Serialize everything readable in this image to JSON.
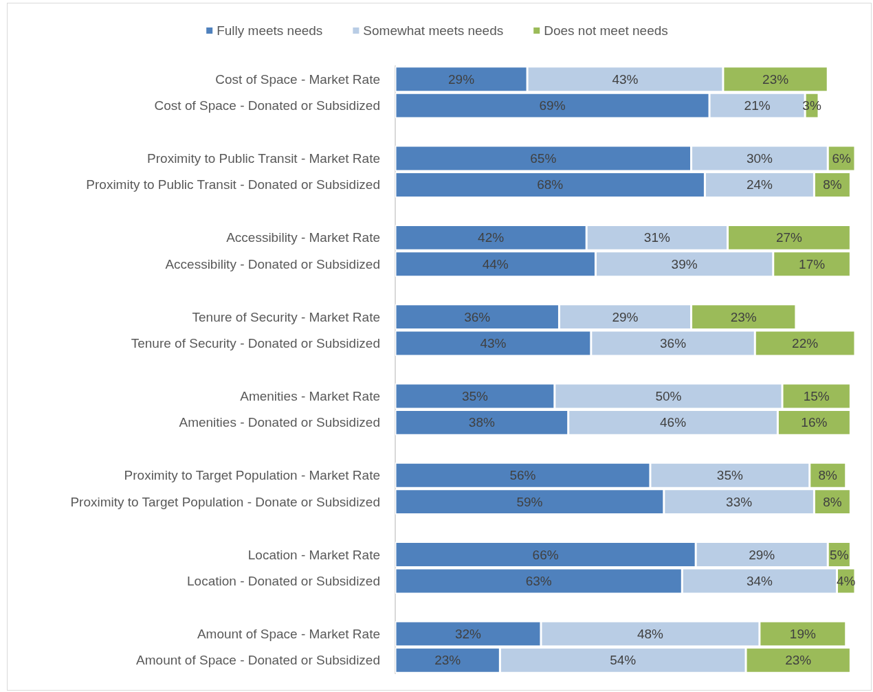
{
  "chart_data": {
    "type": "bar",
    "orientation": "horizontal",
    "stacked": true,
    "legend": "top",
    "tick_labels": "y",
    "categories": [
      "Cost of Space - Market Rate",
      "Cost of Space - Donated or Subsidized",
      null,
      "Proximity to Public Transit - Market Rate",
      "Proximity to Public Transit - Donated or Subsidized",
      null,
      "Accessibility - Market Rate",
      "Accessibility - Donated or Subsidized",
      null,
      "Tenure of Security - Market Rate",
      "Tenure of Security - Donated or Subsidized",
      null,
      "Amenities - Market Rate",
      "Amenities - Donated or Subsidized",
      null,
      "Proximity to Target Population - Market Rate",
      "Proximity to Target Population - Donate or Subsidized",
      null,
      "Location - Market Rate",
      "Location - Donated or Subsidized",
      null,
      "Amount of Space - Market Rate",
      "Amount of Space - Donated or Subsidized"
    ],
    "series": [
      {
        "name": "Fully meets needs",
        "color": "#4f81bd",
        "values": [
          29,
          69,
          null,
          65,
          68,
          null,
          42,
          44,
          null,
          36,
          43,
          null,
          35,
          38,
          null,
          56,
          59,
          null,
          66,
          63,
          null,
          32,
          23
        ],
        "value_labels": [
          "29%",
          "69%",
          null,
          "65%",
          "68%",
          null,
          "42%",
          "44%",
          null,
          "36%",
          "43%",
          null,
          "35%",
          "38%",
          null,
          "56%",
          "59%",
          null,
          "66%",
          "63%",
          null,
          "32%",
          "23%"
        ]
      },
      {
        "name": "Somewhat meets needs",
        "color": "#b9cde5",
        "values": [
          43,
          21,
          null,
          30,
          24,
          null,
          31,
          39,
          null,
          29,
          36,
          null,
          50,
          46,
          null,
          35,
          33,
          null,
          29,
          34,
          null,
          48,
          54
        ],
        "value_labels": [
          "43%",
          "21%",
          null,
          "30%",
          "24%",
          null,
          "31%",
          "39%",
          null,
          "29%",
          "36%",
          null,
          "50%",
          "46%",
          null,
          "35%",
          "33%",
          null,
          "29%",
          "34%",
          null,
          "48%",
          "54%"
        ]
      },
      {
        "name": "Does not meet needs",
        "color": "#9bbb59",
        "values": [
          23,
          3,
          null,
          6,
          8,
          null,
          27,
          17,
          null,
          23,
          22,
          null,
          15,
          16,
          null,
          8,
          8,
          null,
          5,
          4,
          null,
          19,
          23
        ],
        "value_labels": [
          "23%",
          "3%",
          null,
          "6%",
          "8%",
          null,
          "27%",
          "17%",
          null,
          "23%",
          "22%",
          null,
          "15%",
          "16%",
          null,
          "8%",
          "8%",
          null,
          "5%",
          "4%",
          null,
          "19%",
          "23%"
        ]
      }
    ]
  }
}
